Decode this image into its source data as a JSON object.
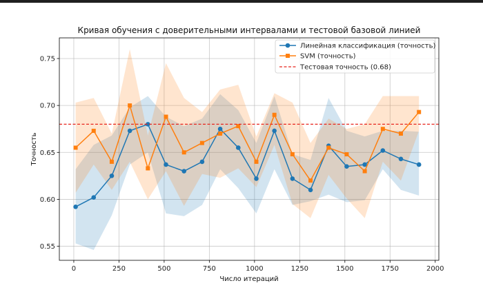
{
  "chart_data": {
    "type": "line",
    "title": "Кривая обучения с доверительными интервалами и тестовой базовой линией",
    "xlabel": "Число итераций",
    "ylabel": "Точность",
    "xlim": [
      -80,
      2020
    ],
    "ylim": [
      0.535,
      0.772
    ],
    "xticks": [
      0,
      250,
      500,
      750,
      1000,
      1250,
      1500,
      1750,
      2000
    ],
    "yticks": [
      0.55,
      0.6,
      0.65,
      0.7,
      0.75
    ],
    "ytick_labels": [
      "0.55",
      "0.60",
      "0.65",
      "0.70",
      "0.75"
    ],
    "grid": true,
    "legend_position": "top-right",
    "x": [
      10,
      110,
      210,
      310,
      410,
      510,
      610,
      710,
      810,
      910,
      1010,
      1110,
      1210,
      1310,
      1410,
      1510,
      1610,
      1710,
      1810,
      1910
    ],
    "series": [
      {
        "name": "Линейная классификация (точность)",
        "color": "#1f77b4",
        "marker": "circle",
        "values": [
          0.592,
          0.602,
          0.625,
          0.673,
          0.68,
          0.637,
          0.63,
          0.64,
          0.675,
          0.655,
          0.622,
          0.673,
          0.622,
          0.61,
          0.657,
          0.635,
          0.637,
          0.652,
          0.643,
          0.637
        ],
        "lower": [
          0.553,
          0.546,
          0.583,
          0.637,
          0.65,
          0.585,
          0.582,
          0.594,
          0.632,
          0.612,
          0.585,
          0.632,
          0.594,
          0.598,
          0.605,
          0.597,
          0.599,
          0.632,
          0.61,
          0.604
        ],
        "upper": [
          0.632,
          0.658,
          0.668,
          0.698,
          0.71,
          0.688,
          0.678,
          0.686,
          0.712,
          0.695,
          0.66,
          0.71,
          0.648,
          0.642,
          0.708,
          0.673,
          0.667,
          0.673,
          0.673,
          0.672
        ]
      },
      {
        "name": "SVM (точность)",
        "color": "#ff7f0e",
        "marker": "square",
        "values": [
          0.655,
          0.673,
          0.64,
          0.7,
          0.633,
          0.688,
          0.65,
          0.66,
          0.67,
          0.678,
          0.64,
          0.69,
          0.648,
          0.62,
          0.655,
          0.648,
          0.63,
          0.675,
          0.67,
          0.693
        ],
        "lower": [
          0.607,
          0.637,
          0.61,
          0.64,
          0.6,
          0.63,
          0.593,
          0.627,
          0.623,
          0.633,
          0.613,
          0.658,
          0.595,
          0.58,
          0.626,
          0.601,
          0.58,
          0.64,
          0.62,
          0.673
        ],
        "upper": [
          0.703,
          0.708,
          0.67,
          0.76,
          0.668,
          0.745,
          0.708,
          0.693,
          0.717,
          0.722,
          0.667,
          0.713,
          0.703,
          0.66,
          0.686,
          0.675,
          0.68,
          0.71,
          0.71,
          0.71
        ]
      }
    ],
    "baseline": {
      "name": "Тестовая точность (0.68)",
      "value": 0.68,
      "color": "#e8241c"
    }
  }
}
